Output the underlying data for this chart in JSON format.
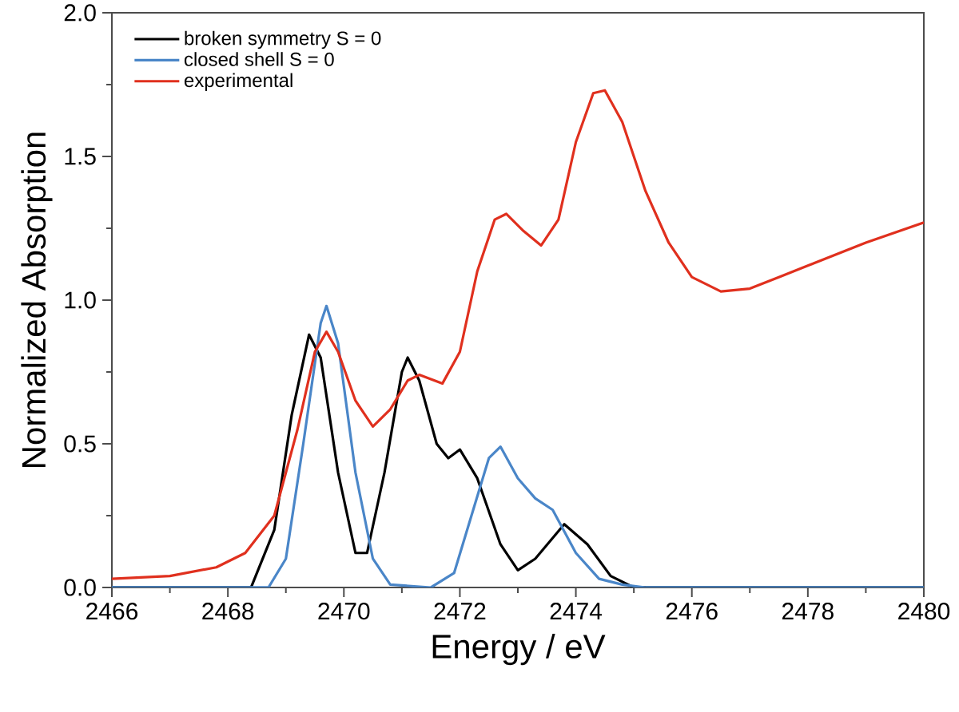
{
  "chart_data": {
    "type": "line",
    "xlabel": "Energy / eV",
    "ylabel": "Normalized Absorption",
    "xlim": [
      2466,
      2480
    ],
    "xticks": [
      2466,
      2468,
      2470,
      2472,
      2474,
      2476,
      2478,
      2480
    ],
    "ylim": [
      0,
      2
    ],
    "yticks": [
      {
        "value": 0,
        "label": "0.0"
      },
      {
        "value": 0.5,
        "label": "0.5"
      },
      {
        "value": 1,
        "label": "1.0"
      },
      {
        "value": 1.5,
        "label": "1.5"
      },
      {
        "value": 2,
        "label": "2.0"
      }
    ],
    "grid": false,
    "legend": "top left",
    "marker": "none",
    "line_style": "solid",
    "series": [
      {
        "name": "broken symmetry S = 0",
        "color": "#000000",
        "x": [
          2466,
          2468.4,
          2468.8,
          2469.1,
          2469.4,
          2469.6,
          2469.9,
          2470.2,
          2470.4,
          2470.7,
          2471.0,
          2471.1,
          2471.3,
          2471.6,
          2471.8,
          2472.0,
          2472.3,
          2472.7,
          2473.0,
          2473.3,
          2473.8,
          2474.2,
          2474.6,
          2475.0,
          2480
        ],
        "values": [
          0,
          0,
          0.2,
          0.6,
          0.88,
          0.8,
          0.4,
          0.12,
          0.12,
          0.4,
          0.75,
          0.8,
          0.72,
          0.5,
          0.45,
          0.48,
          0.38,
          0.15,
          0.06,
          0.1,
          0.22,
          0.15,
          0.04,
          0,
          0
        ]
      },
      {
        "name": "closed shell S = 0",
        "color": "#4a86c8",
        "x": [
          2466,
          2468.7,
          2469.0,
          2469.3,
          2469.6,
          2469.7,
          2469.9,
          2470.2,
          2470.5,
          2470.8,
          2471.5,
          2471.9,
          2472.2,
          2472.5,
          2472.7,
          2473.0,
          2473.3,
          2473.6,
          2474.0,
          2474.4,
          2474.8,
          2475.2,
          2480
        ],
        "values": [
          0,
          0,
          0.1,
          0.5,
          0.92,
          0.98,
          0.85,
          0.4,
          0.1,
          0.01,
          0,
          0.05,
          0.25,
          0.45,
          0.49,
          0.38,
          0.31,
          0.27,
          0.12,
          0.03,
          0.01,
          0,
          0
        ]
      },
      {
        "name": "experimental",
        "color": "#e0301e",
        "x": [
          2466,
          2467,
          2467.8,
          2468.3,
          2468.8,
          2469.2,
          2469.5,
          2469.7,
          2469.9,
          2470.2,
          2470.5,
          2470.8,
          2471.1,
          2471.3,
          2471.7,
          2472.0,
          2472.3,
          2472.6,
          2472.8,
          2473.1,
          2473.4,
          2473.7,
          2474.0,
          2474.3,
          2474.5,
          2474.8,
          2475.2,
          2475.6,
          2476.0,
          2476.5,
          2477.0,
          2477.5,
          2478,
          2479,
          2480
        ],
        "values": [
          0.03,
          0.04,
          0.07,
          0.12,
          0.25,
          0.55,
          0.82,
          0.89,
          0.82,
          0.65,
          0.56,
          0.62,
          0.72,
          0.74,
          0.71,
          0.82,
          1.1,
          1.28,
          1.3,
          1.24,
          1.19,
          1.28,
          1.55,
          1.72,
          1.73,
          1.62,
          1.38,
          1.2,
          1.08,
          1.03,
          1.04,
          1.08,
          1.12,
          1.2,
          1.27
        ]
      }
    ]
  }
}
